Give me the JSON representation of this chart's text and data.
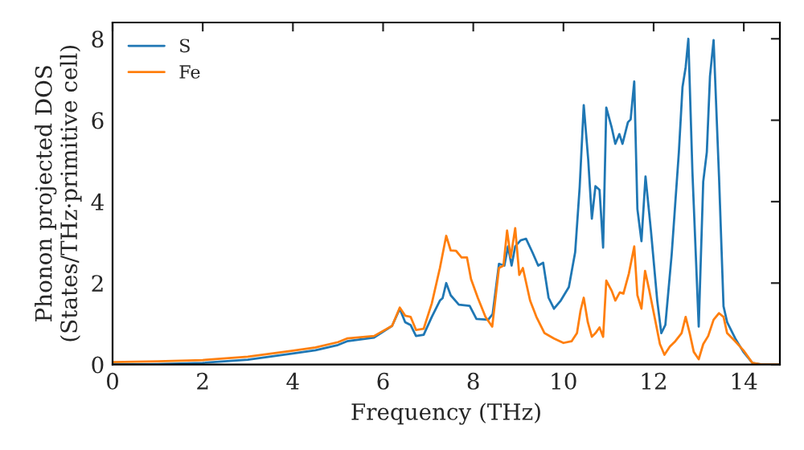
{
  "chart_data": {
    "type": "line",
    "xlabel": "Frequency (THz)",
    "ylabel": "Phonon projected DOS\n(States/THz·primitive cell)",
    "xlim": [
      0,
      14.8
    ],
    "ylim": [
      0,
      8.4
    ],
    "xticks": [
      0,
      2,
      4,
      6,
      8,
      10,
      12,
      14
    ],
    "yticks": [
      0,
      2,
      4,
      6,
      8
    ],
    "grid": false,
    "legend": "top left",
    "series": [
      {
        "name": "S",
        "color": "#1f77b4",
        "x": [
          0,
          1,
          2,
          3,
          4,
          4.5,
          5,
          5.2,
          5.8,
          6.2,
          6.37,
          6.49,
          6.61,
          6.73,
          6.9,
          7.08,
          7.26,
          7.32,
          7.4,
          7.5,
          7.68,
          7.92,
          8.07,
          8.33,
          8.43,
          8.57,
          8.69,
          8.77,
          8.85,
          8.93,
          9.05,
          9.17,
          9.31,
          9.44,
          9.55,
          9.67,
          9.79,
          9.94,
          10.12,
          10.26,
          10.36,
          10.45,
          10.55,
          10.63,
          10.71,
          10.8,
          10.88,
          10.95,
          11.07,
          11.15,
          11.24,
          11.31,
          11.43,
          11.49,
          11.57,
          11.64,
          11.73,
          11.82,
          11.94,
          12.08,
          12.17,
          12.26,
          12.4,
          12.56,
          12.64,
          12.71,
          12.77,
          12.86,
          13.0,
          13.1,
          13.18,
          13.25,
          13.33,
          13.45,
          13.55,
          13.63,
          13.81,
          13.99,
          14.19,
          14.4,
          14.8
        ],
        "values": [
          0,
          0.01,
          0.04,
          0.12,
          0.27,
          0.35,
          0.48,
          0.57,
          0.66,
          0.95,
          1.37,
          1.04,
          0.97,
          0.7,
          0.73,
          1.17,
          1.57,
          1.63,
          2.0,
          1.7,
          1.47,
          1.44,
          1.12,
          1.1,
          1.24,
          2.47,
          2.43,
          2.9,
          2.43,
          2.9,
          3.05,
          3.09,
          2.76,
          2.43,
          2.5,
          1.64,
          1.37,
          1.57,
          1.9,
          2.76,
          4.36,
          6.37,
          5.02,
          3.58,
          4.38,
          4.29,
          2.87,
          6.31,
          5.82,
          5.42,
          5.66,
          5.42,
          5.95,
          6.02,
          6.95,
          3.82,
          3.03,
          4.62,
          3.29,
          1.57,
          0.77,
          0.97,
          2.7,
          5.22,
          6.81,
          7.3,
          8.0,
          4.74,
          0.93,
          4.49,
          5.22,
          7.08,
          7.97,
          4.62,
          1.43,
          1.04,
          0.64,
          0.31,
          0.04,
          0,
          0
        ]
      },
      {
        "name": "Fe",
        "color": "#ff7f0e",
        "x": [
          0,
          1,
          2,
          3,
          4,
          4.5,
          5,
          5.2,
          5.8,
          6.2,
          6.37,
          6.49,
          6.61,
          6.73,
          6.9,
          7.08,
          7.26,
          7.4,
          7.5,
          7.62,
          7.74,
          7.86,
          7.95,
          8.1,
          8.27,
          8.42,
          8.57,
          8.67,
          8.75,
          8.83,
          8.93,
          9.02,
          9.1,
          9.26,
          9.4,
          9.58,
          9.79,
          10.0,
          10.18,
          10.3,
          10.38,
          10.45,
          10.54,
          10.63,
          10.71,
          10.8,
          10.88,
          10.95,
          11.07,
          11.15,
          11.25,
          11.33,
          11.45,
          11.57,
          11.64,
          11.73,
          11.81,
          11.9,
          12.02,
          12.14,
          12.24,
          12.36,
          12.48,
          12.62,
          12.71,
          12.8,
          12.89,
          13.0,
          13.1,
          13.21,
          13.33,
          13.45,
          13.55,
          13.63,
          13.81,
          13.99,
          14.19,
          14.4,
          14.8
        ],
        "values": [
          0.06,
          0.08,
          0.11,
          0.19,
          0.34,
          0.42,
          0.55,
          0.64,
          0.7,
          0.95,
          1.4,
          1.2,
          1.17,
          0.85,
          0.88,
          1.5,
          2.37,
          3.16,
          2.8,
          2.79,
          2.63,
          2.63,
          2.1,
          1.64,
          1.17,
          0.93,
          2.37,
          2.43,
          3.29,
          2.63,
          3.35,
          2.2,
          2.37,
          1.57,
          1.17,
          0.77,
          0.64,
          0.53,
          0.57,
          0.77,
          1.33,
          1.64,
          1.04,
          0.68,
          0.77,
          0.91,
          0.68,
          2.06,
          1.81,
          1.57,
          1.77,
          1.74,
          2.23,
          2.9,
          1.7,
          1.37,
          2.3,
          1.84,
          1.17,
          0.5,
          0.24,
          0.44,
          0.57,
          0.77,
          1.17,
          0.77,
          0.31,
          0.13,
          0.5,
          0.7,
          1.1,
          1.26,
          1.17,
          0.77,
          0.57,
          0.35,
          0.04,
          0,
          0
        ]
      }
    ]
  }
}
